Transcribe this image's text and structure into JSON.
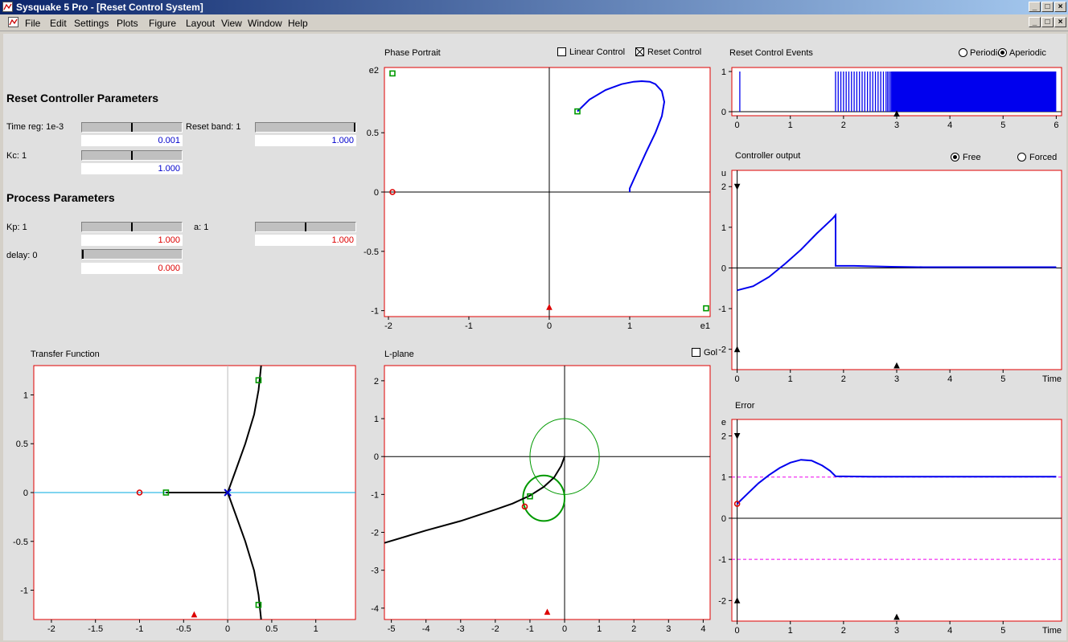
{
  "window": {
    "title": "Sysquake 5 Pro - [Reset Control System]"
  },
  "menu": [
    "File",
    "Edit",
    "Settings",
    "Plots",
    "Figure",
    "Layout",
    "View",
    "Window",
    "Help"
  ],
  "reset_params": {
    "header": "Reset Controller Parameters",
    "time_reg_label": "Time reg: 1e-3",
    "time_reg_value": "0.001",
    "time_reg_level": 0.5,
    "reset_band_label": "Reset band: 1",
    "reset_band_value": "1.000",
    "reset_band_level": 1.0,
    "kc_label": "Kc: 1",
    "kc_value": "1.000",
    "kc_level": 0.5
  },
  "process_params": {
    "header": "Process Parameters",
    "kp_label": "Kp: 1",
    "kp_value": "1.000",
    "kp_level": 0.5,
    "a_label": "a: 1",
    "a_value": "1.000",
    "a_level": 0.5,
    "delay_label": "delay: 0",
    "delay_value": "0.000",
    "delay_level": 0.0
  },
  "phase_portrait": {
    "title": "Phase Portrait",
    "linear_control_label": "Linear Control",
    "linear_control_checked": false,
    "reset_control_label": "Reset Control",
    "reset_control_checked": true
  },
  "reset_events": {
    "title": "Reset Control Events",
    "periodic_label": "Periodic",
    "aperiodic_label": "Aperiodic",
    "selected": "Aperiodic"
  },
  "controller_output": {
    "title": "Controller output",
    "free_label": "Free",
    "forced_label": "Forced",
    "selected": "Free"
  },
  "transfer_function": {
    "title": "Transfer Function"
  },
  "lplane": {
    "title": "L-plane",
    "gol_label": "Gol",
    "gol_checked": false
  },
  "error_plot": {
    "title": "Error"
  },
  "chart_data": [
    {
      "name": "phase-portrait",
      "type": "line",
      "xlim": [
        -2.05,
        2.0
      ],
      "ylim": [
        -1.05,
        1.05
      ],
      "xticks": [
        -2,
        -1,
        0,
        1
      ],
      "yticks": [
        -1,
        -0.5,
        0,
        0.5
      ],
      "xlabel": "e1",
      "ylabel": "e2",
      "series": [
        {
          "x": [
            0.35,
            0.5,
            0.7,
            0.9,
            1.05,
            1.15,
            1.25,
            1.32,
            1.4,
            1.43,
            1.4,
            1.32,
            1.2,
            1.1,
            1.0,
            1.0
          ],
          "y": [
            0.68,
            0.78,
            0.86,
            0.91,
            0.93,
            0.935,
            0.93,
            0.91,
            0.85,
            0.76,
            0.64,
            0.5,
            0.33,
            0.18,
            0.03,
            0
          ]
        }
      ]
    },
    {
      "name": "reset-events",
      "type": "bar",
      "xlim": [
        -0.1,
        6.1
      ],
      "ylim": [
        -0.1,
        1.1
      ],
      "xticks": [
        0,
        1,
        2,
        3,
        4,
        5,
        6
      ],
      "yticks": [
        0,
        1
      ],
      "events": [
        0.05,
        1.85,
        1.9,
        1.95,
        2.0,
        2.05,
        2.1,
        2.15,
        2.2,
        2.25,
        2.3,
        2.35,
        2.4,
        2.45,
        2.5,
        2.55,
        2.6,
        2.65,
        2.7,
        2.75,
        2.8,
        2.83,
        2.86,
        2.89
      ],
      "dense_from": 2.9,
      "dense_to": 6.0
    },
    {
      "name": "controller-output",
      "type": "line",
      "xlim": [
        -0.1,
        6.1
      ],
      "ylim": [
        -2.5,
        2.4
      ],
      "xticks": [
        0,
        1,
        2,
        3,
        4,
        5
      ],
      "yticks": [
        -2,
        -1,
        0,
        1,
        2
      ],
      "xlabel": "Time",
      "ylabel": "u",
      "series": [
        {
          "x": [
            0,
            0.3,
            0.6,
            0.9,
            1.2,
            1.5,
            1.8,
            1.85,
            1.85,
            1.9,
            2.2,
            2.5,
            2.9,
            3.5,
            4.5,
            5.5,
            6.0
          ],
          "y": [
            -0.55,
            -0.45,
            -0.22,
            0.1,
            0.45,
            0.85,
            1.22,
            1.3,
            0.05,
            0.05,
            0.05,
            0.04,
            0.03,
            0.02,
            0.02,
            0.02,
            0.02
          ]
        }
      ]
    },
    {
      "name": "transfer-function",
      "type": "scatter",
      "xlim": [
        -2.2,
        1.45
      ],
      "ylim": [
        -1.3,
        1.3
      ],
      "xticks": [
        -2,
        -1.5,
        -1,
        -0.5,
        0,
        0.5,
        1
      ],
      "yticks": [
        -1,
        -0.5,
        0,
        0.5,
        1
      ],
      "real_axis_locus": {
        "x": [
          -0.7,
          0
        ],
        "y": [
          0,
          0
        ]
      },
      "upper_branch": {
        "x": [
          0,
          0.1,
          0.2,
          0.3,
          0.35,
          0.38
        ],
        "y": [
          0,
          0.25,
          0.5,
          0.8,
          1.05,
          1.3
        ]
      },
      "lower_branch": {
        "x": [
          0,
          0.1,
          0.2,
          0.3,
          0.35,
          0.38
        ],
        "y": [
          0,
          -0.25,
          -0.5,
          -0.8,
          -1.05,
          -1.3
        ]
      },
      "points": {
        "pole_red": [
          -1,
          0
        ],
        "zero_green": [
          -0.7,
          0
        ],
        "cross": [
          0,
          0
        ],
        "green_top": [
          0.35,
          1.15
        ],
        "green_bottom": [
          0.35,
          -1.15
        ],
        "triangle": [
          -0.38,
          -1.25
        ]
      }
    },
    {
      "name": "lplane",
      "type": "line",
      "xlim": [
        -5.2,
        4.2
      ],
      "ylim": [
        -4.3,
        2.4
      ],
      "xticks": [
        -5,
        -4,
        -3,
        -2,
        -1,
        0,
        1,
        2,
        3,
        4
      ],
      "yticks": [
        -4,
        -3,
        -2,
        -1,
        0,
        1,
        2
      ],
      "nyquist": {
        "x": [
          -5.2,
          -4,
          -3,
          -2,
          -1.5,
          -1,
          -0.6,
          -0.3,
          -0.1,
          0
        ],
        "y": [
          -2.28,
          -1.95,
          -1.7,
          -1.4,
          -1.24,
          -1.03,
          -0.8,
          -0.55,
          -0.25,
          0
        ]
      },
      "circles": [
        {
          "cx": 0,
          "cy": 0,
          "r": 1.0,
          "width": 1
        },
        {
          "cx": -0.6,
          "cy": -1.1,
          "r": 0.6,
          "width": 2
        }
      ],
      "points": {
        "red_dot": [
          -1.15,
          -1.32
        ],
        "green_sq": [
          -1.0,
          -1.05
        ],
        "triangle": [
          -0.5,
          -4.1
        ]
      }
    },
    {
      "name": "error",
      "type": "line",
      "xlim": [
        -0.1,
        6.1
      ],
      "ylim": [
        -2.5,
        2.4
      ],
      "xticks": [
        0,
        1,
        2,
        3,
        4,
        5
      ],
      "yticks": [
        -2,
        -1,
        0,
        1,
        2
      ],
      "xlabel": "Time",
      "ylabel": "e",
      "band": [
        -1,
        1
      ],
      "series": [
        {
          "x": [
            0,
            0.2,
            0.4,
            0.6,
            0.8,
            1.0,
            1.2,
            1.4,
            1.6,
            1.75,
            1.85,
            2.5,
            3.5,
            4.5,
            5.5,
            6.0
          ],
          "y": [
            0.35,
            0.6,
            0.85,
            1.05,
            1.22,
            1.35,
            1.42,
            1.4,
            1.28,
            1.15,
            1.02,
            1.01,
            1.01,
            1.01,
            1.01,
            1.01
          ]
        }
      ]
    }
  ]
}
